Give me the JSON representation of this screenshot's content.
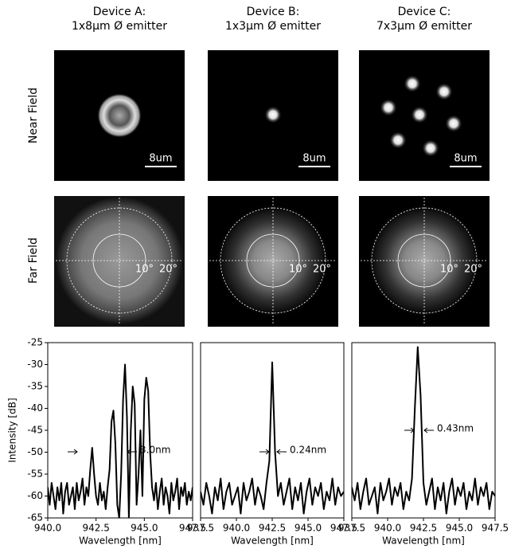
{
  "columns": [
    {
      "title": [
        "Device A:",
        "1x8μm Ø emitter"
      ],
      "scale_bar": "8um",
      "angles": [
        "10°",
        "20°"
      ]
    },
    {
      "title": [
        "Device B:",
        "1x3μm Ø emitter"
      ],
      "scale_bar": "8um",
      "angles": [
        "10°",
        "20°"
      ]
    },
    {
      "title": [
        "Device C:",
        "7x3μm Ø emitter"
      ],
      "scale_bar": "8um",
      "angles": [
        "10°",
        "20°"
      ]
    }
  ],
  "rows": [
    "Near Field",
    "Far Field"
  ],
  "chart_data": [
    {
      "type": "line",
      "y_label": "Intensity [dB]",
      "x_label": "Wavelength [nm]",
      "annotation": "3.0nm",
      "color": "#000000",
      "xlim": [
        940,
        947.5
      ],
      "xticks": [
        {
          "value": 940,
          "label": "940.0"
        },
        942.5,
        {
          "value": 945,
          "label": "945.0"
        },
        947.5
      ],
      "ylim": [
        -65,
        -25
      ],
      "yticks": [
        -25,
        -30,
        -35,
        -40,
        -45,
        -50,
        -55,
        -60,
        -65
      ],
      "x": [
        940.0,
        940.1,
        940.2,
        940.3,
        940.4,
        940.5,
        940.6,
        940.7,
        940.8,
        940.9,
        941.0,
        941.1,
        941.2,
        941.3,
        941.4,
        941.5,
        941.6,
        941.7,
        941.8,
        941.9,
        942.0,
        942.1,
        942.2,
        942.3,
        942.4,
        942.5,
        942.6,
        942.7,
        942.8,
        942.9,
        943.0,
        943.1,
        943.2,
        943.3,
        943.4,
        943.5,
        943.6,
        943.7,
        943.8,
        943.9,
        944.0,
        944.1,
        944.2,
        944.3,
        944.4,
        944.5,
        944.6,
        944.7,
        944.8,
        944.9,
        945.0,
        945.1,
        945.2,
        945.3,
        945.4,
        945.5,
        945.6,
        945.7,
        945.8,
        945.9,
        946.0,
        946.1,
        946.2,
        946.3,
        946.4,
        946.5,
        946.6,
        946.7,
        946.8,
        946.9,
        947.0,
        947.1,
        947.2,
        947.3,
        947.4,
        947.5
      ],
      "values": [
        -58,
        -62,
        -57,
        -60,
        -63,
        -58,
        -61,
        -57,
        -64,
        -59,
        -57,
        -62,
        -60,
        -58,
        -63,
        -57,
        -61,
        -59,
        -56,
        -62,
        -58,
        -60,
        -54,
        -49,
        -55,
        -60,
        -62,
        -57,
        -61,
        -59,
        -63,
        -58,
        -54,
        -43,
        -40.5,
        -48,
        -62,
        -65,
        -55,
        -38,
        -30,
        -42,
        -65,
        -45,
        -35,
        -39,
        -62,
        -55,
        -45,
        -60,
        -38,
        -33,
        -36,
        -50,
        -58,
        -61,
        -57,
        -63,
        -59,
        -56,
        -62,
        -58,
        -60,
        -64,
        -57,
        -61,
        -59,
        -56,
        -63,
        -58,
        -60,
        -57,
        -62,
        -59,
        -61,
        -58
      ]
    },
    {
      "type": "line",
      "x_label": "Wavelength [nm]",
      "annotation": "0.24nm",
      "color": "#000000",
      "xlim": [
        937.5,
        947.5
      ],
      "xticks": [
        937.5,
        {
          "value": 940,
          "label": "940.0"
        },
        942.5,
        {
          "value": 945,
          "label": "945.0"
        },
        947.5
      ],
      "ylim": [
        -65,
        -25
      ],
      "x": [
        937.5,
        937.7,
        937.9,
        938.1,
        938.3,
        938.5,
        938.7,
        938.9,
        939.1,
        939.3,
        939.5,
        939.7,
        939.9,
        940.1,
        940.3,
        940.5,
        940.7,
        940.9,
        941.1,
        941.3,
        941.5,
        941.7,
        941.9,
        942.1,
        942.3,
        942.5,
        942.7,
        942.9,
        943.1,
        943.3,
        943.5,
        943.7,
        943.9,
        944.1,
        944.3,
        944.5,
        944.7,
        944.9,
        945.1,
        945.3,
        945.5,
        945.7,
        945.9,
        946.1,
        946.3,
        946.5,
        946.7,
        946.9,
        947.1,
        947.3,
        947.5
      ],
      "values": [
        -59,
        -62,
        -57,
        -60,
        -64,
        -58,
        -61,
        -56,
        -63,
        -59,
        -57,
        -62,
        -60,
        -58,
        -64,
        -57,
        -61,
        -59,
        -56,
        -62,
        -58,
        -60,
        -63,
        -57,
        -52,
        -29.5,
        -50,
        -60,
        -57,
        -62,
        -59,
        -56,
        -63,
        -58,
        -61,
        -57,
        -64,
        -59,
        -56,
        -62,
        -58,
        -60,
        -57,
        -63,
        -59,
        -61,
        -56,
        -62,
        -58,
        -60,
        -59
      ]
    },
    {
      "type": "line",
      "x_label": "Wavelength [nm]",
      "annotation": "0.43nm",
      "color": "#000000",
      "xlim": [
        937.5,
        947.5
      ],
      "xticks": [
        937.5,
        {
          "value": 940,
          "label": "940.0"
        },
        942.5,
        {
          "value": 945,
          "label": "945.0"
        },
        947.5
      ],
      "ylim": [
        -65,
        -25
      ],
      "x": [
        937.5,
        937.7,
        937.9,
        938.1,
        938.3,
        938.5,
        938.7,
        938.9,
        939.1,
        939.3,
        939.5,
        939.7,
        939.9,
        940.1,
        940.3,
        940.5,
        940.7,
        940.9,
        941.1,
        941.3,
        941.5,
        941.7,
        941.9,
        942.1,
        942.3,
        942.5,
        942.7,
        942.9,
        943.1,
        943.3,
        943.5,
        943.7,
        943.9,
        944.1,
        944.3,
        944.5,
        944.7,
        944.9,
        945.1,
        945.3,
        945.5,
        945.7,
        945.9,
        946.1,
        946.3,
        946.5,
        946.7,
        946.9,
        947.1,
        947.3,
        947.5
      ],
      "values": [
        -58,
        -61,
        -57,
        -63,
        -59,
        -56,
        -62,
        -60,
        -58,
        -64,
        -57,
        -61,
        -59,
        -56,
        -62,
        -58,
        -60,
        -57,
        -63,
        -59,
        -61,
        -56,
        -40,
        -26,
        -37,
        -57,
        -62,
        -59,
        -56,
        -63,
        -58,
        -61,
        -57,
        -64,
        -59,
        -56,
        -62,
        -58,
        -60,
        -57,
        -63,
        -59,
        -61,
        -56,
        -62,
        -58,
        -60,
        -57,
        -63,
        -59,
        -60
      ]
    }
  ]
}
